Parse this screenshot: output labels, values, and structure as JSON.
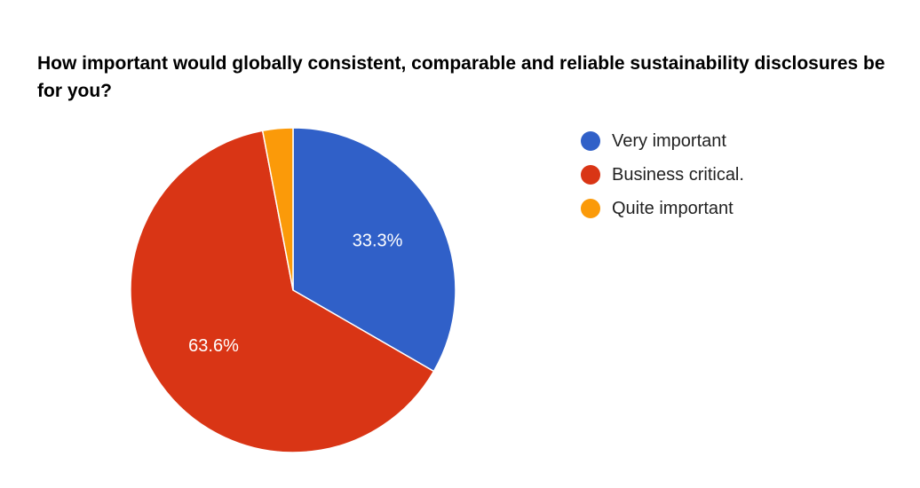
{
  "chart_data": {
    "type": "pie",
    "title": "How important would globally consistent, comparable and reliable sustainability disclosures be for you?",
    "legend_position": "right",
    "slices": [
      {
        "label": "Very important",
        "value": 33.3,
        "value_label": "33.3%",
        "color": "#3060c8"
      },
      {
        "label": "Business critical.",
        "value": 63.6,
        "value_label": "63.6%",
        "color": "#d93515"
      },
      {
        "label": "Quite important",
        "value": 3.0,
        "value_label": "",
        "color": "#fb9a09"
      }
    ]
  }
}
